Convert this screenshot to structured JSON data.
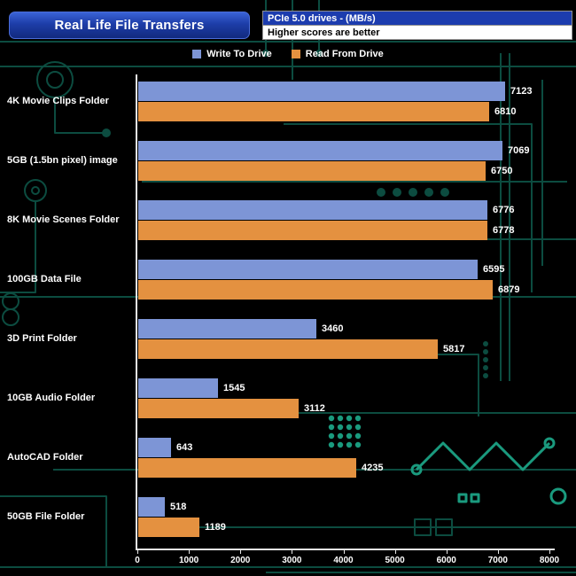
{
  "header": {
    "title": "Real Life File Transfers",
    "drive_info": "PCIe 5.0 drives - (MB/s)",
    "note": "Higher scores are better"
  },
  "colors": {
    "write": "#7d95d6",
    "read": "#e49140",
    "axis": "#e8e8e8",
    "background": "#000000",
    "circuit": "#0c4c40",
    "circuit_bright": "#1a9a7e"
  },
  "chart_data": {
    "type": "bar",
    "orientation": "horizontal",
    "title": "Real Life File Transfers",
    "subtitle": "PCIe 5.0 drives - (MB/s)",
    "note": "Higher scores are better",
    "categories": [
      "4K Movie Clips Folder",
      "5GB (1.5bn pixel) image",
      "8K Movie Scenes Folder",
      "100GB Data File",
      "3D Print Folder",
      "10GB Audio Folder",
      "AutoCAD Folder",
      "50GB File Folder"
    ],
    "series": [
      {
        "name": "Write To  Drive",
        "color": "#7d95d6",
        "values": [
          7123,
          7069,
          6776,
          6595,
          3460,
          1545,
          643,
          518
        ]
      },
      {
        "name": "Read From  Drive",
        "color": "#e49140",
        "values": [
          6810,
          6750,
          6778,
          6879,
          5817,
          3112,
          4235,
          1189
        ]
      }
    ],
    "xlim": [
      0,
      8000
    ],
    "xticks": [
      0,
      1000,
      2000,
      3000,
      4000,
      5000,
      6000,
      7000,
      8000
    ],
    "legend_position": "top",
    "grid": false
  }
}
